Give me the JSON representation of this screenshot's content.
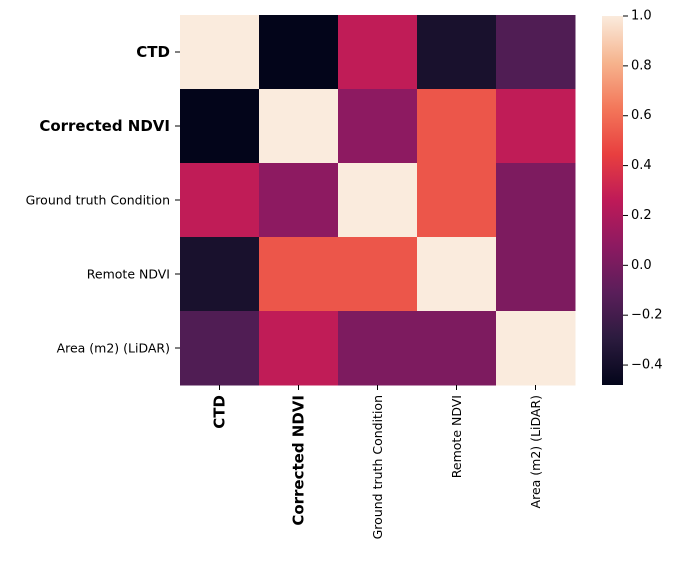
{
  "chart_data": {
    "type": "heatmap",
    "title": "",
    "xlabel": "",
    "ylabel": "",
    "rows": [
      {
        "label": "CTD",
        "bold": true
      },
      {
        "label": "Corrected NDVI",
        "bold": true
      },
      {
        "label": "Ground truth Condition",
        "bold": false
      },
      {
        "label": "Remote NDVI",
        "bold": false
      },
      {
        "label": "Area (m2) (LiDAR)",
        "bold": false
      }
    ],
    "columns": [
      {
        "label": "CTD",
        "bold": true
      },
      {
        "label": "Corrected NDVI",
        "bold": true
      },
      {
        "label": "Ground truth Condition",
        "bold": false
      },
      {
        "label": "Remote NDVI",
        "bold": false
      },
      {
        "label": "Area (m2) (LiDAR)",
        "bold": false
      }
    ],
    "values": [
      [
        1.0,
        -0.48,
        0.27,
        -0.38,
        -0.15
      ],
      [
        -0.48,
        1.0,
        0.08,
        0.52,
        0.27
      ],
      [
        0.27,
        0.08,
        1.0,
        0.52,
        0.02
      ],
      [
        -0.38,
        0.52,
        0.52,
        1.0,
        0.02
      ],
      [
        -0.15,
        0.27,
        0.02,
        0.02,
        1.0
      ]
    ],
    "colorbar": {
      "min": -0.48,
      "max": 1.0,
      "ticks": [
        1.0,
        0.8,
        0.6,
        0.4,
        0.2,
        0.0,
        -0.2,
        -0.4
      ],
      "tick_labels": [
        "1.0",
        "0.8",
        "0.6",
        "0.4",
        "0.2",
        "0.0",
        "−0.2",
        "−0.4"
      ],
      "colormap": "rocket"
    }
  }
}
